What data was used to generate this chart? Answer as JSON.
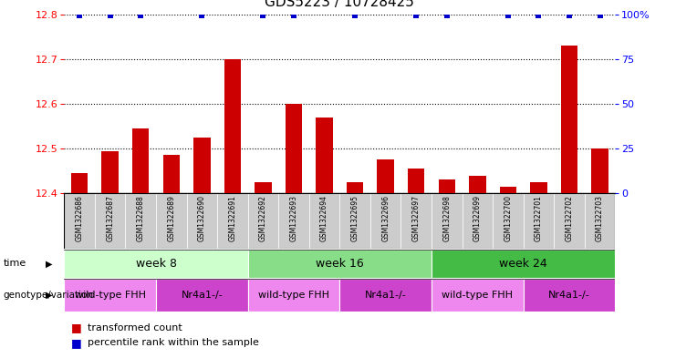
{
  "title": "GDS5223 / 10728425",
  "samples": [
    "GSM1322686",
    "GSM1322687",
    "GSM1322688",
    "GSM1322689",
    "GSM1322690",
    "GSM1322691",
    "GSM1322692",
    "GSM1322693",
    "GSM1322694",
    "GSM1322695",
    "GSM1322696",
    "GSM1322697",
    "GSM1322698",
    "GSM1322699",
    "GSM1322700",
    "GSM1322701",
    "GSM1322702",
    "GSM1322703"
  ],
  "bar_values": [
    12.445,
    12.495,
    12.545,
    12.485,
    12.525,
    12.7,
    12.425,
    12.6,
    12.57,
    12.425,
    12.475,
    12.455,
    12.43,
    12.44,
    12.415,
    12.425,
    12.73,
    12.5
  ],
  "blue_squares": [
    true,
    true,
    true,
    false,
    true,
    false,
    true,
    true,
    false,
    true,
    false,
    true,
    true,
    false,
    true,
    true,
    true,
    true
  ],
  "ylim_left": [
    12.4,
    12.8
  ],
  "ylim_right": [
    0,
    100
  ],
  "yticks_left": [
    12.4,
    12.5,
    12.6,
    12.7,
    12.8
  ],
  "yticks_right": [
    0,
    25,
    50,
    75,
    100
  ],
  "ytick_labels_right": [
    "0",
    "25",
    "50",
    "75",
    "100%"
  ],
  "bar_color": "#cc0000",
  "square_color": "#0000cc",
  "time_groups": [
    {
      "label": "week 8",
      "start": 0,
      "end": 5,
      "color": "#ccffcc"
    },
    {
      "label": "week 16",
      "start": 6,
      "end": 11,
      "color": "#88dd88"
    },
    {
      "label": "week 24",
      "start": 12,
      "end": 17,
      "color": "#44bb44"
    }
  ],
  "geno_groups": [
    {
      "label": "wild-type FHH",
      "start": 0,
      "end": 2,
      "color": "#ee88ee"
    },
    {
      "label": "Nr4a1-/-",
      "start": 3,
      "end": 5,
      "color": "#cc44cc"
    },
    {
      "label": "wild-type FHH",
      "start": 6,
      "end": 8,
      "color": "#ee88ee"
    },
    {
      "label": "Nr4a1-/-",
      "start": 9,
      "end": 11,
      "color": "#cc44cc"
    },
    {
      "label": "wild-type FHH",
      "start": 12,
      "end": 14,
      "color": "#ee88ee"
    },
    {
      "label": "Nr4a1-/-",
      "start": 15,
      "end": 17,
      "color": "#cc44cc"
    }
  ],
  "legend_bar_label": "transformed count",
  "legend_sq_label": "percentile rank within the sample",
  "sample_bg_color": "#cccccc",
  "time_label": "time",
  "geno_label": "genotype/variation",
  "title_fontsize": 11,
  "bar_label_fontsize": 5.5,
  "group_label_fontsize": 9,
  "geno_label_fontsize": 8,
  "tick_fontsize": 8,
  "legend_fontsize": 8
}
